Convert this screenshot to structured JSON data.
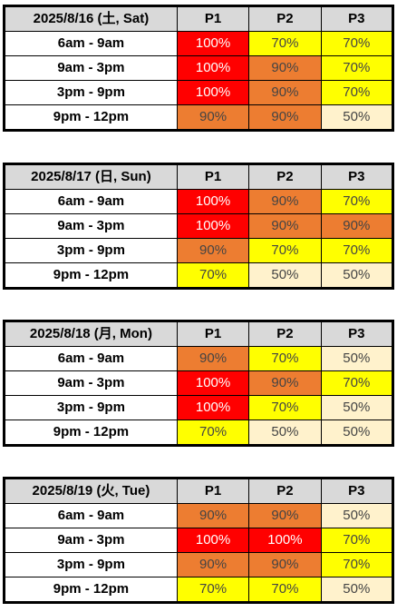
{
  "colors": {
    "100%": "#ff0000",
    "90%": "#ed7d31",
    "70%": "#ffff00",
    "50%": "#fff2cc",
    "header_bg": "#d9d9d9"
  },
  "columns": [
    "P1",
    "P2",
    "P3"
  ],
  "days": [
    {
      "date": "2025/8/16 (土, Sat)",
      "rows": [
        {
          "slot": "6am - 9am",
          "values": [
            "100%",
            "70%",
            "70%"
          ]
        },
        {
          "slot": "9am - 3pm",
          "values": [
            "100%",
            "90%",
            "70%"
          ]
        },
        {
          "slot": "3pm - 9pm",
          "values": [
            "100%",
            "90%",
            "70%"
          ]
        },
        {
          "slot": "9pm - 12pm",
          "values": [
            "90%",
            "90%",
            "50%"
          ]
        }
      ]
    },
    {
      "date": "2025/8/17 (日, Sun)",
      "rows": [
        {
          "slot": "6am - 9am",
          "values": [
            "100%",
            "90%",
            "70%"
          ]
        },
        {
          "slot": "9am - 3pm",
          "values": [
            "100%",
            "90%",
            "90%"
          ]
        },
        {
          "slot": "3pm - 9pm",
          "values": [
            "90%",
            "70%",
            "70%"
          ]
        },
        {
          "slot": "9pm - 12pm",
          "values": [
            "70%",
            "50%",
            "50%"
          ]
        }
      ]
    },
    {
      "date": "2025/8/18 (月, Mon)",
      "rows": [
        {
          "slot": "6am - 9am",
          "values": [
            "90%",
            "70%",
            "50%"
          ]
        },
        {
          "slot": "9am - 3pm",
          "values": [
            "100%",
            "90%",
            "70%"
          ]
        },
        {
          "slot": "3pm - 9pm",
          "values": [
            "100%",
            "70%",
            "50%"
          ]
        },
        {
          "slot": "9pm - 12pm",
          "values": [
            "70%",
            "50%",
            "50%"
          ]
        }
      ]
    },
    {
      "date": "2025/8/19 (火, Tue)",
      "rows": [
        {
          "slot": "6am - 9am",
          "values": [
            "90%",
            "90%",
            "50%"
          ]
        },
        {
          "slot": "9am - 3pm",
          "values": [
            "100%",
            "100%",
            "70%"
          ]
        },
        {
          "slot": "3pm - 9pm",
          "values": [
            "90%",
            "90%",
            "70%"
          ]
        },
        {
          "slot": "9pm - 12pm",
          "values": [
            "70%",
            "70%",
            "50%"
          ]
        }
      ]
    }
  ]
}
